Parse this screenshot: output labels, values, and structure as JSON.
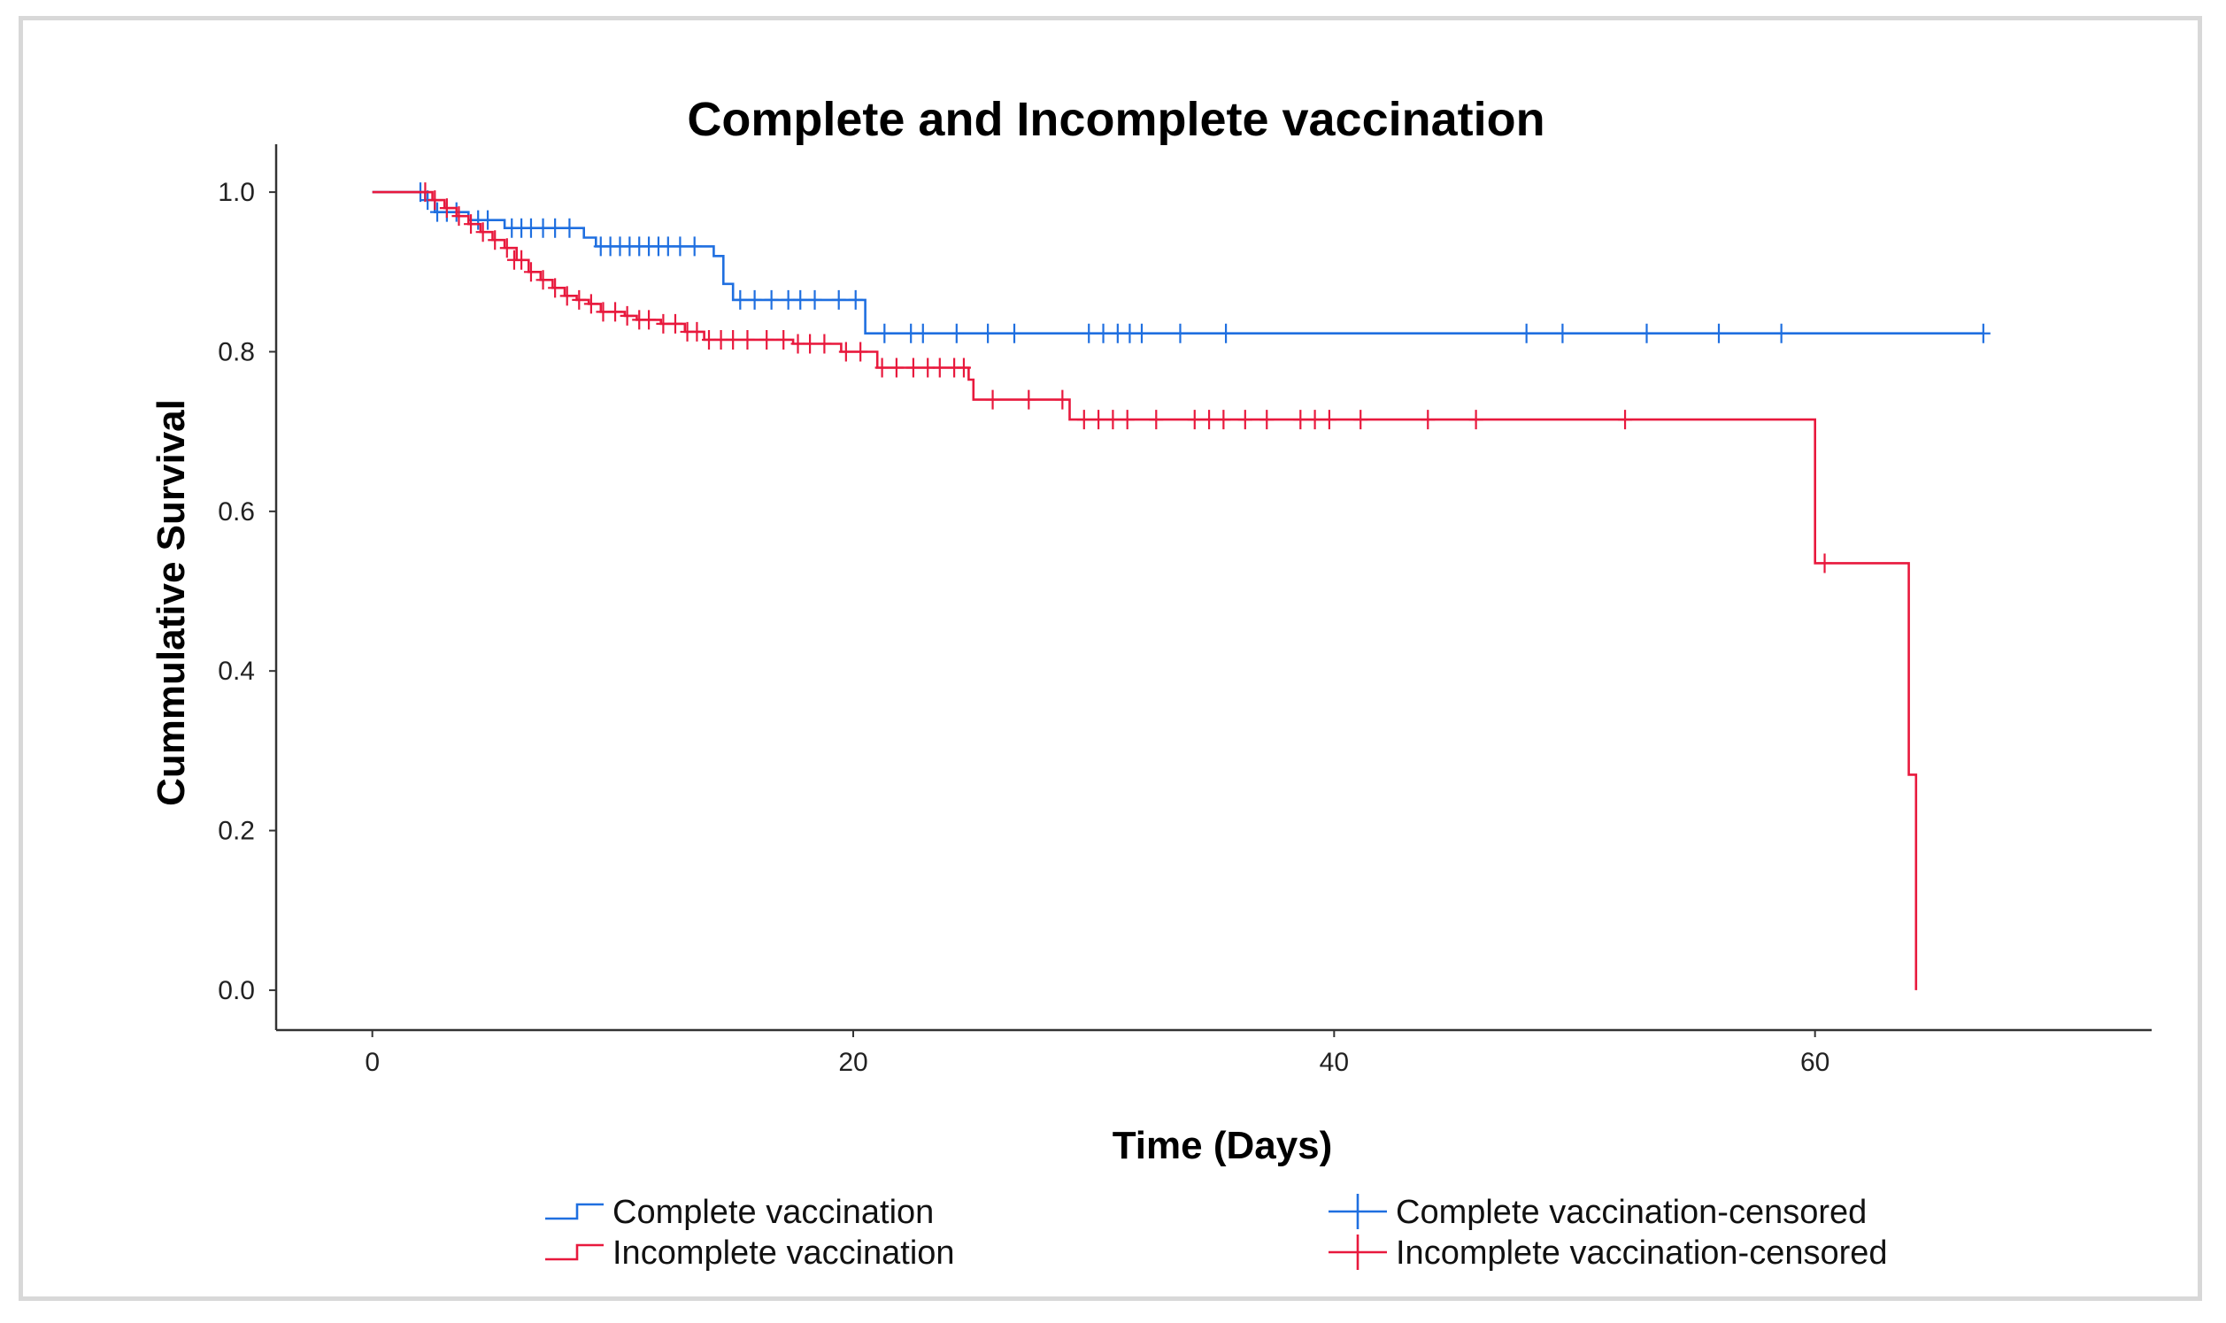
{
  "chart_data": {
    "type": "line",
    "subtype": "kaplan-meier step",
    "title": "Complete and Incomplete vaccination",
    "xlabel": "Time (Days)",
    "ylabel": "Cummulative Survival",
    "xlim": [
      -4,
      74
    ],
    "ylim": [
      -0.05,
      1.06
    ],
    "x_ticks": [
      0,
      20,
      40,
      60
    ],
    "x_tick_labels": [
      "0",
      "20",
      "40",
      "60"
    ],
    "y_ticks": [
      0.0,
      0.2,
      0.4,
      0.6,
      0.8,
      1.0
    ],
    "y_tick_labels": [
      "0.0",
      "0.2",
      "0.4",
      "0.6",
      "0.8",
      "1.0"
    ],
    "grid": false,
    "legend_position": "bottom",
    "series": [
      {
        "name": "Complete vaccination",
        "color": "#1f6fe0",
        "steps": [
          [
            0,
            1.0
          ],
          [
            2.2,
            0.99
          ],
          [
            2.6,
            0.975
          ],
          [
            4,
            0.965
          ],
          [
            5.5,
            0.955
          ],
          [
            8.8,
            0.943
          ],
          [
            9.3,
            0.932
          ],
          [
            14.2,
            0.92
          ],
          [
            14.6,
            0.885
          ],
          [
            15,
            0.865
          ],
          [
            20.5,
            0.823
          ],
          [
            67,
            0.823
          ]
        ],
        "censored": [
          [
            2,
            1.0
          ],
          [
            2.3,
            0.99
          ],
          [
            2.7,
            0.975
          ],
          [
            3.1,
            0.975
          ],
          [
            3.5,
            0.975
          ],
          [
            4.4,
            0.965
          ],
          [
            4.8,
            0.965
          ],
          [
            5.8,
            0.955
          ],
          [
            6.2,
            0.955
          ],
          [
            6.6,
            0.955
          ],
          [
            7.1,
            0.955
          ],
          [
            7.6,
            0.955
          ],
          [
            8.2,
            0.955
          ],
          [
            9.5,
            0.932
          ],
          [
            9.9,
            0.932
          ],
          [
            10.3,
            0.932
          ],
          [
            10.7,
            0.932
          ],
          [
            11.1,
            0.932
          ],
          [
            11.5,
            0.932
          ],
          [
            11.9,
            0.932
          ],
          [
            12.3,
            0.932
          ],
          [
            12.8,
            0.932
          ],
          [
            13.4,
            0.932
          ],
          [
            15.3,
            0.865
          ],
          [
            15.9,
            0.865
          ],
          [
            16.6,
            0.865
          ],
          [
            17.3,
            0.865
          ],
          [
            17.8,
            0.865
          ],
          [
            18.4,
            0.865
          ],
          [
            19.4,
            0.865
          ],
          [
            20.1,
            0.865
          ],
          [
            21.3,
            0.823
          ],
          [
            22.4,
            0.823
          ],
          [
            22.9,
            0.823
          ],
          [
            24.3,
            0.823
          ],
          [
            25.6,
            0.823
          ],
          [
            26.7,
            0.823
          ],
          [
            29.8,
            0.823
          ],
          [
            30.4,
            0.823
          ],
          [
            31,
            0.823
          ],
          [
            31.5,
            0.823
          ],
          [
            32,
            0.823
          ],
          [
            33.6,
            0.823
          ],
          [
            35.5,
            0.823
          ],
          [
            48,
            0.823
          ],
          [
            49.5,
            0.823
          ],
          [
            53,
            0.823
          ],
          [
            56,
            0.823
          ],
          [
            58.6,
            0.823
          ],
          [
            67,
            0.823
          ]
        ]
      },
      {
        "name": "Incomplete vaccination",
        "color": "#e8193d",
        "steps": [
          [
            0,
            1.0
          ],
          [
            2.1,
            1.0
          ],
          [
            2.5,
            0.99
          ],
          [
            3,
            0.98
          ],
          [
            3.5,
            0.97
          ],
          [
            4,
            0.96
          ],
          [
            4.5,
            0.95
          ],
          [
            5,
            0.94
          ],
          [
            5.5,
            0.93
          ],
          [
            6,
            0.915
          ],
          [
            6.5,
            0.9
          ],
          [
            7,
            0.89
          ],
          [
            7.5,
            0.88
          ],
          [
            8,
            0.87
          ],
          [
            8.5,
            0.865
          ],
          [
            9,
            0.86
          ],
          [
            9.5,
            0.85
          ],
          [
            10.5,
            0.845
          ],
          [
            11,
            0.84
          ],
          [
            12,
            0.835
          ],
          [
            13,
            0.825
          ],
          [
            13.8,
            0.815
          ],
          [
            17.5,
            0.81
          ],
          [
            19.5,
            0.8
          ],
          [
            21,
            0.78
          ],
          [
            24.8,
            0.765
          ],
          [
            25,
            0.74
          ],
          [
            29,
            0.715
          ],
          [
            59.9,
            0.715
          ],
          [
            60,
            0.535
          ],
          [
            63.8,
            0.535
          ],
          [
            63.9,
            0.27
          ],
          [
            64.1,
            0.27
          ],
          [
            64.2,
            0.0
          ]
        ],
        "censored": [
          [
            2.2,
            1.0
          ],
          [
            2.6,
            0.99
          ],
          [
            3.1,
            0.98
          ],
          [
            3.6,
            0.97
          ],
          [
            4.1,
            0.96
          ],
          [
            4.6,
            0.95
          ],
          [
            5.1,
            0.94
          ],
          [
            5.6,
            0.93
          ],
          [
            5.9,
            0.915
          ],
          [
            6.2,
            0.915
          ],
          [
            6.6,
            0.9
          ],
          [
            7.1,
            0.89
          ],
          [
            7.6,
            0.88
          ],
          [
            8.1,
            0.87
          ],
          [
            8.6,
            0.865
          ],
          [
            9.1,
            0.86
          ],
          [
            9.6,
            0.85
          ],
          [
            10.1,
            0.85
          ],
          [
            10.6,
            0.845
          ],
          [
            11.1,
            0.84
          ],
          [
            11.5,
            0.84
          ],
          [
            12.1,
            0.835
          ],
          [
            12.6,
            0.835
          ],
          [
            13.1,
            0.825
          ],
          [
            13.5,
            0.825
          ],
          [
            14,
            0.815
          ],
          [
            14.5,
            0.815
          ],
          [
            15,
            0.815
          ],
          [
            15.6,
            0.815
          ],
          [
            16.4,
            0.815
          ],
          [
            17.1,
            0.815
          ],
          [
            17.7,
            0.81
          ],
          [
            18.2,
            0.81
          ],
          [
            18.8,
            0.81
          ],
          [
            19.7,
            0.8
          ],
          [
            20.3,
            0.8
          ],
          [
            21.2,
            0.78
          ],
          [
            21.8,
            0.78
          ],
          [
            22.5,
            0.78
          ],
          [
            23.1,
            0.78
          ],
          [
            23.6,
            0.78
          ],
          [
            24.2,
            0.78
          ],
          [
            24.6,
            0.78
          ],
          [
            25.8,
            0.74
          ],
          [
            27.3,
            0.74
          ],
          [
            28.7,
            0.74
          ],
          [
            29.6,
            0.715
          ],
          [
            30.2,
            0.715
          ],
          [
            30.8,
            0.715
          ],
          [
            31.4,
            0.715
          ],
          [
            32.6,
            0.715
          ],
          [
            34.2,
            0.715
          ],
          [
            34.8,
            0.715
          ],
          [
            35.4,
            0.715
          ],
          [
            36.3,
            0.715
          ],
          [
            37.2,
            0.715
          ],
          [
            38.6,
            0.715
          ],
          [
            39.2,
            0.715
          ],
          [
            39.8,
            0.715
          ],
          [
            41.1,
            0.715
          ],
          [
            43.9,
            0.715
          ],
          [
            45.9,
            0.715
          ],
          [
            52.1,
            0.715
          ],
          [
            60.4,
            0.535
          ]
        ]
      }
    ],
    "legend": [
      {
        "label": "Complete vaccination",
        "kind": "line",
        "color": "#1f6fe0"
      },
      {
        "label": "Complete vaccination-censored",
        "kind": "censor",
        "color": "#1f6fe0"
      },
      {
        "label": "Incomplete vaccination",
        "kind": "line",
        "color": "#e8193d"
      },
      {
        "label": "Incomplete vaccination-censored",
        "kind": "censor",
        "color": "#e8193d"
      }
    ]
  }
}
